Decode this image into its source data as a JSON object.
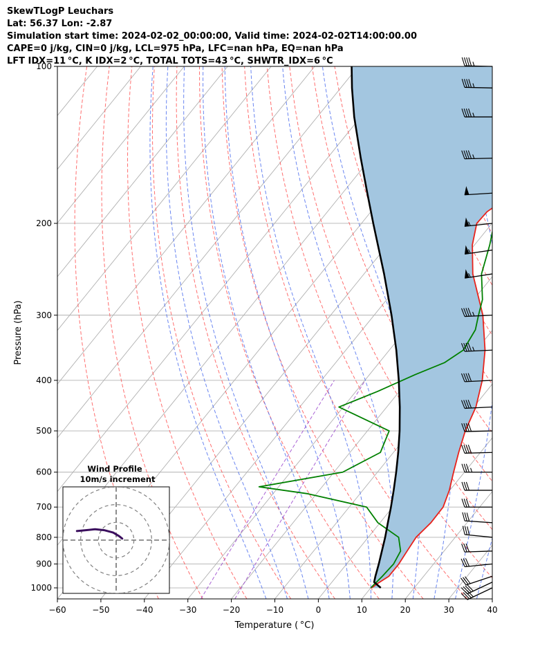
{
  "header": {
    "lines": [
      "SkewTLogP Leuchars",
      "Lat: 56.37   Lon: -2.87",
      "Simulation start time: 2024-02-02_00:00:00, Valid time: 2024-02-02T14:00:00.00",
      "CAPE=0 j/kg, CIN=0 j/kg, LCL=975 hPa, LFC=nan hPa, EQ=nan hPa",
      "LFT IDX=11 °C, K IDX=2 °C, TOTAL TOTS=43 °C, SHWTR_IDX=6 °C"
    ]
  },
  "chart_data": {
    "type": "line",
    "chart_kind": "skew-T log-P diagram",
    "xlabel": "Temperature ( °C)",
    "ylabel": "Pressure (hPa)",
    "xlim": [
      -60,
      40
    ],
    "ylim": [
      1050,
      100
    ],
    "x_ticks": [
      -60,
      -50,
      -40,
      -30,
      -20,
      -10,
      0,
      10,
      20,
      30,
      40
    ],
    "x_tick_labels": [
      "−60",
      "−50",
      "−40",
      "−30",
      "−20",
      "−10",
      "0",
      "10",
      "20",
      "30",
      "40"
    ],
    "y_ticks": [
      1000,
      900,
      800,
      700,
      600,
      500,
      400,
      300,
      200,
      100
    ],
    "y_tick_labels": [
      "1000",
      "900",
      "800",
      "700",
      "600",
      "500",
      "400",
      "300",
      "200",
      "100"
    ],
    "y_scale": "log",
    "grid": true,
    "series": [
      {
        "role": "temperature",
        "color": "#e8221b",
        "points": [
          [
            1000,
            10.2
          ],
          [
            980,
            10.8
          ],
          [
            950,
            12.0
          ],
          [
            900,
            12.0
          ],
          [
            850,
            11.5
          ],
          [
            800,
            11.0
          ],
          [
            750,
            11.7
          ],
          [
            700,
            11.6
          ],
          [
            650,
            9.9
          ],
          [
            600,
            7.5
          ],
          [
            550,
            5.0
          ],
          [
            500,
            2.5
          ],
          [
            450,
            0.5
          ],
          [
            400,
            -3.0
          ],
          [
            350,
            -8.0
          ],
          [
            300,
            -15.0
          ],
          [
            250,
            -25.0
          ],
          [
            220,
            -30.5
          ],
          [
            200,
            -33.5
          ],
          [
            190,
            -33.3
          ],
          [
            180,
            -31.5
          ],
          [
            170,
            -28.0
          ],
          [
            160,
            -23.0
          ],
          [
            150,
            -17.0
          ],
          [
            140,
            -12.0
          ],
          [
            130,
            -7.0
          ],
          [
            120,
            -3.0
          ],
          [
            110,
            0.5
          ],
          [
            100,
            4.8
          ]
        ]
      },
      {
        "role": "dewpoint",
        "color": "#008000",
        "points": [
          [
            1000,
            10.0
          ],
          [
            950,
            10.5
          ],
          [
            900,
            10.8
          ],
          [
            850,
            10.0
          ],
          [
            800,
            7.0
          ],
          [
            750,
            -0.5
          ],
          [
            700,
            -6.0
          ],
          [
            660,
            -22.0
          ],
          [
            640,
            -34.5
          ],
          [
            600,
            -18.0
          ],
          [
            550,
            -13.0
          ],
          [
            500,
            -15.0
          ],
          [
            450,
            -31.0
          ],
          [
            420,
            -25.0
          ],
          [
            390,
            -19.5
          ],
          [
            370,
            -15.0
          ],
          [
            350,
            -13.0
          ],
          [
            320,
            -14.0
          ],
          [
            300,
            -16.0
          ],
          [
            280,
            -18.0
          ],
          [
            250,
            -23.0
          ],
          [
            220,
            -26.5
          ],
          [
            200,
            -29.5
          ],
          [
            180,
            -29.0
          ],
          [
            160,
            -29.0
          ],
          [
            140,
            -29.0
          ],
          [
            130,
            -28.0
          ],
          [
            120,
            -27.0
          ],
          [
            110,
            -24.5
          ],
          [
            100,
            -22.0
          ]
        ]
      },
      {
        "role": "parcel",
        "color": "#000000",
        "points": [
          [
            1000,
            12.3
          ],
          [
            975,
            9.7
          ],
          [
            950,
            8.9
          ],
          [
            900,
            7.4
          ],
          [
            850,
            5.7
          ],
          [
            800,
            3.9
          ],
          [
            750,
            1.8
          ],
          [
            700,
            -0.4
          ],
          [
            650,
            -2.9
          ],
          [
            600,
            -5.7
          ],
          [
            550,
            -8.9
          ],
          [
            500,
            -12.6
          ],
          [
            450,
            -17.0
          ],
          [
            400,
            -22.2
          ],
          [
            350,
            -28.4
          ],
          [
            300,
            -36.0
          ],
          [
            250,
            -45.4
          ],
          [
            200,
            -57.3
          ],
          [
            175,
            -64.3
          ],
          [
            150,
            -72.3
          ],
          [
            125,
            -81.5
          ],
          [
            110,
            -87.4
          ],
          [
            100,
            -91.5
          ]
        ]
      }
    ],
    "shaded_region": {
      "between": [
        "temperature",
        "parcel"
      ],
      "color": "#a3c6e0"
    },
    "background_lines": {
      "isotherms": {
        "color": "#b0b0b0",
        "from": -150,
        "to": 40,
        "step": 10
      },
      "dry_adiabats_surface_c": [
        -40,
        -30,
        -20,
        -10,
        0,
        10,
        20,
        30,
        40,
        50,
        60,
        70,
        80,
        90,
        100,
        110,
        120,
        130,
        140
      ],
      "dry_adiabat_color": "#ff5555",
      "moist_adiabats_surface_c": [
        -15,
        -10,
        -5,
        0,
        5,
        10,
        15,
        20,
        25,
        30,
        35
      ],
      "moist_adiabat_color": "#4466ee",
      "mixing_ratio_color": "#9944cc"
    },
    "wind_barbs": [
      {
        "p": 1000,
        "u": 38,
        "v": 18
      },
      {
        "p": 975,
        "u": 34,
        "v": 16
      },
      {
        "p": 950,
        "u": 30,
        "v": 10
      },
      {
        "p": 900,
        "u": 30,
        "v": 3
      },
      {
        "p": 850,
        "u": 30,
        "v": 1
      },
      {
        "p": 800,
        "u": 30,
        "v": -3
      },
      {
        "p": 750,
        "u": 30,
        "v": -2
      },
      {
        "p": 700,
        "u": 30,
        "v": 0
      },
      {
        "p": 650,
        "u": 32,
        "v": 0
      },
      {
        "p": 600,
        "u": 35,
        "v": 0
      },
      {
        "p": 550,
        "u": 38,
        "v": 1
      },
      {
        "p": 500,
        "u": 40,
        "v": 1
      },
      {
        "p": 450,
        "u": 42,
        "v": 2
      },
      {
        "p": 400,
        "u": 42,
        "v": 2
      },
      {
        "p": 350,
        "u": 43,
        "v": 2
      },
      {
        "p": 300,
        "u": 44,
        "v": 2
      },
      {
        "p": 250,
        "u": 52,
        "v": 8
      },
      {
        "p": 225,
        "u": 54,
        "v": 8
      },
      {
        "p": 200,
        "u": 56,
        "v": 6
      },
      {
        "p": 175,
        "u": 48,
        "v": 3
      },
      {
        "p": 150,
        "u": 46,
        "v": 1
      },
      {
        "p": 125,
        "u": 45,
        "v": 0
      },
      {
        "p": 110,
        "u": 44,
        "v": -1
      },
      {
        "p": 100,
        "u": 44,
        "v": -1
      }
    ],
    "hodograph": {
      "title": "Wind Profile",
      "subtitle": "10m/s increment",
      "rings_ms": [
        10,
        20,
        30
      ],
      "range_ms": 30,
      "color": "#3b0f5e",
      "points": [
        [
          -13,
          3
        ],
        [
          -10,
          3.3
        ],
        [
          -7,
          3.6
        ],
        [
          -4,
          3.3
        ],
        [
          -1,
          2.5
        ],
        [
          1,
          1.3
        ],
        [
          2,
          0.5
        ]
      ]
    }
  }
}
